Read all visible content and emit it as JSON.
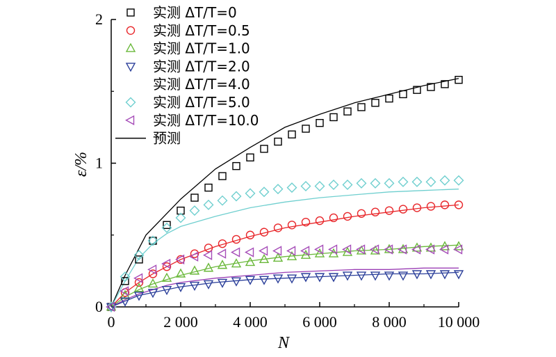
{
  "chart_data": {
    "type": "scatter",
    "xlabel": "N",
    "ylabel": "ε/%",
    "xlim": [
      0,
      10000
    ],
    "ylim": [
      0,
      2
    ],
    "x_ticks": [
      0,
      2000,
      4000,
      6000,
      8000,
      10000
    ],
    "x_tick_labels": [
      "0",
      "2 000",
      "4 000",
      "6 000",
      "8 000",
      "10 000"
    ],
    "y_ticks": [
      0,
      1,
      2
    ],
    "y_tick_labels": [
      "0",
      "1",
      "2"
    ],
    "grid": false,
    "legend_position": "top-left",
    "series": [
      {
        "name": "实测 ΔT/T=0",
        "marker": "square",
        "color": "#000000",
        "x": [
          0,
          400,
          800,
          1200,
          1600,
          2000,
          2400,
          2800,
          3200,
          3600,
          4000,
          4400,
          4800,
          5200,
          5600,
          6000,
          6400,
          6800,
          7200,
          7600,
          8000,
          8400,
          8800,
          9200,
          9600,
          10000
        ],
        "y": [
          0,
          0.18,
          0.33,
          0.46,
          0.57,
          0.67,
          0.76,
          0.83,
          0.91,
          0.98,
          1.04,
          1.1,
          1.15,
          1.2,
          1.24,
          1.28,
          1.32,
          1.36,
          1.39,
          1.42,
          1.45,
          1.48,
          1.51,
          1.53,
          1.55,
          1.58
        ]
      },
      {
        "name": "实测 ΔT/T=0.5",
        "marker": "circle",
        "color": "#e8262a",
        "x": [
          0,
          400,
          800,
          1200,
          1600,
          2000,
          2400,
          2800,
          3200,
          3600,
          4000,
          4400,
          4800,
          5200,
          5600,
          6000,
          6400,
          6800,
          7200,
          7600,
          8000,
          8400,
          8800,
          9200,
          9600,
          10000
        ],
        "y": [
          0,
          0.1,
          0.17,
          0.23,
          0.28,
          0.33,
          0.37,
          0.41,
          0.44,
          0.47,
          0.5,
          0.52,
          0.55,
          0.57,
          0.59,
          0.6,
          0.62,
          0.63,
          0.65,
          0.66,
          0.67,
          0.68,
          0.69,
          0.7,
          0.71,
          0.71
        ]
      },
      {
        "name": "实测 ΔT/T=1.0",
        "marker": "triangle-up",
        "color": "#6ab83a",
        "x": [
          0,
          400,
          800,
          1200,
          1600,
          2000,
          2400,
          2800,
          3200,
          3600,
          4000,
          4400,
          4800,
          5200,
          5600,
          6000,
          6400,
          6800,
          7200,
          7600,
          8000,
          8400,
          8800,
          9200,
          9600,
          10000
        ],
        "y": [
          0,
          0.08,
          0.13,
          0.16,
          0.2,
          0.23,
          0.25,
          0.27,
          0.29,
          0.3,
          0.31,
          0.33,
          0.34,
          0.35,
          0.36,
          0.37,
          0.37,
          0.38,
          0.39,
          0.39,
          0.4,
          0.4,
          0.41,
          0.41,
          0.42,
          0.42
        ]
      },
      {
        "name": "实测 ΔT/T=2.0",
        "marker": "triangle-down",
        "color": "#2b3f9a",
        "x": [
          0,
          400,
          800,
          1200,
          1600,
          2000,
          2400,
          2800,
          3200,
          3600,
          4000,
          4400,
          4800,
          5200,
          5600,
          6000,
          6400,
          6800,
          7200,
          7600,
          8000,
          8400,
          8800,
          9200,
          9600,
          10000
        ],
        "y": [
          0,
          0.04,
          0.08,
          0.1,
          0.12,
          0.14,
          0.15,
          0.16,
          0.17,
          0.18,
          0.19,
          0.19,
          0.2,
          0.2,
          0.21,
          0.21,
          0.21,
          0.22,
          0.22,
          0.22,
          0.22,
          0.22,
          0.23,
          0.23,
          0.23,
          0.23
        ]
      },
      {
        "name": "实测 ΔT/T=4.0",
        "marker": "none",
        "color": "#9b3fb5",
        "x": [],
        "y": []
      },
      {
        "name": "实测 ΔT/T=5.0",
        "marker": "diamond",
        "color": "#6fcfcf",
        "x": [
          0,
          400,
          800,
          1200,
          1600,
          2000,
          2400,
          2800,
          3200,
          3600,
          4000,
          4400,
          4800,
          5200,
          5600,
          6000,
          6400,
          6800,
          7200,
          7600,
          8000,
          8400,
          8800,
          9200,
          9600,
          10000
        ],
        "y": [
          0,
          0.21,
          0.36,
          0.46,
          0.55,
          0.62,
          0.67,
          0.71,
          0.74,
          0.77,
          0.79,
          0.8,
          0.82,
          0.83,
          0.84,
          0.84,
          0.85,
          0.85,
          0.86,
          0.86,
          0.86,
          0.87,
          0.87,
          0.87,
          0.88,
          0.88
        ]
      },
      {
        "name": "实测 ΔT/T=10.0",
        "marker": "triangle-left",
        "color": "#a64db8",
        "x": [
          0,
          400,
          800,
          1200,
          1600,
          2000,
          2400,
          2800,
          3200,
          3600,
          4000,
          4400,
          4800,
          5200,
          5600,
          6000,
          6400,
          6800,
          7200,
          7600,
          8000,
          8400,
          8800,
          9200,
          9600,
          10000
        ],
        "y": [
          0,
          0.11,
          0.2,
          0.26,
          0.3,
          0.33,
          0.35,
          0.36,
          0.37,
          0.38,
          0.38,
          0.39,
          0.39,
          0.39,
          0.39,
          0.4,
          0.4,
          0.4,
          0.4,
          0.4,
          0.4,
          0.4,
          0.4,
          0.4,
          0.4,
          0.4
        ]
      },
      {
        "name": "预测",
        "marker": "line",
        "color": "#000000",
        "x": [],
        "y": []
      }
    ],
    "prediction_curves": [
      {
        "color": "#000000",
        "x": [
          0,
          400,
          1000,
          2000,
          3000,
          4000,
          5000,
          6000,
          7000,
          8000,
          9000,
          10000
        ],
        "y": [
          0,
          0.22,
          0.5,
          0.75,
          0.96,
          1.11,
          1.25,
          1.34,
          1.42,
          1.48,
          1.54,
          1.59
        ]
      },
      {
        "color": "#6fcfcf",
        "x": [
          0,
          400,
          800,
          1200,
          1600,
          2000,
          3000,
          4000,
          5000,
          6000,
          7000,
          8000,
          9000,
          10000
        ],
        "y": [
          0,
          0.18,
          0.34,
          0.44,
          0.51,
          0.56,
          0.63,
          0.69,
          0.73,
          0.76,
          0.78,
          0.8,
          0.81,
          0.82
        ]
      },
      {
        "color": "#e8262a",
        "x": [
          0,
          400,
          800,
          1200,
          1600,
          2000,
          3000,
          4000,
          5000,
          6000,
          7000,
          8000,
          9000,
          10000
        ],
        "y": [
          0,
          0.1,
          0.17,
          0.23,
          0.28,
          0.33,
          0.42,
          0.49,
          0.55,
          0.59,
          0.63,
          0.66,
          0.69,
          0.71
        ]
      },
      {
        "color": "#6ab83a",
        "x": [
          0,
          400,
          800,
          1200,
          1600,
          2000,
          3000,
          4000,
          5000,
          6000,
          7000,
          8000,
          9000,
          10000
        ],
        "y": [
          0,
          0.07,
          0.12,
          0.16,
          0.19,
          0.22,
          0.28,
          0.32,
          0.35,
          0.37,
          0.39,
          0.4,
          0.42,
          0.43
        ]
      },
      {
        "color": "#9b3fb5",
        "x": [
          0,
          400,
          800,
          1200,
          1600,
          2000,
          3000,
          4000,
          5000,
          6000,
          7000,
          8000,
          9000,
          10000
        ],
        "y": [
          0,
          0.05,
          0.09,
          0.12,
          0.15,
          0.17,
          0.2,
          0.22,
          0.24,
          0.25,
          0.26,
          0.26,
          0.27,
          0.27
        ]
      },
      {
        "color": "#2b3f9a",
        "x": [
          0,
          400,
          800,
          1200,
          1600,
          2000,
          3000,
          4000,
          5000,
          6000,
          7000,
          8000,
          9000,
          10000
        ],
        "y": [
          0,
          0.04,
          0.08,
          0.1,
          0.12,
          0.14,
          0.17,
          0.19,
          0.2,
          0.21,
          0.22,
          0.23,
          0.23,
          0.24
        ]
      }
    ]
  }
}
